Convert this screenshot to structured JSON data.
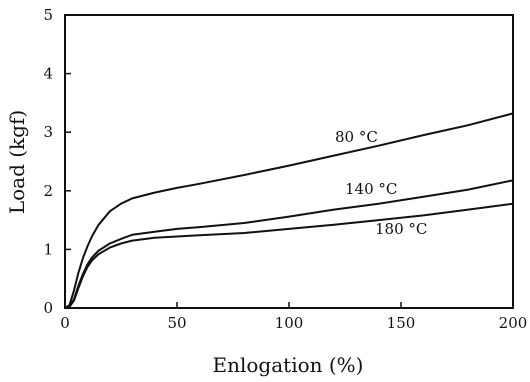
{
  "chart_data": {
    "type": "line",
    "title": "",
    "xlabel": "Enlogation (%)",
    "ylabel": "Load (kgf)",
    "xlim": [
      0,
      200
    ],
    "ylim": [
      0,
      5
    ],
    "xticks": [
      0,
      50,
      100,
      150,
      200
    ],
    "yticks": [
      0,
      1,
      2,
      3,
      4,
      5
    ],
    "xtick_labels": [
      "0",
      "50",
      "100",
      "150",
      "200"
    ],
    "ytick_labels": [
      "0",
      "1",
      "2",
      "3",
      "4",
      "5"
    ],
    "grid": false,
    "legend": "none (series labeled directly on curves)",
    "series": [
      {
        "name": "80 °C",
        "color": "#111111",
        "x": [
          0,
          2,
          4,
          6,
          8,
          10,
          12,
          15,
          20,
          25,
          30,
          40,
          50,
          60,
          80,
          100,
          120,
          140,
          160,
          180,
          200
        ],
        "y": [
          0,
          0.05,
          0.3,
          0.6,
          0.85,
          1.05,
          1.22,
          1.42,
          1.65,
          1.78,
          1.87,
          1.97,
          2.05,
          2.12,
          2.27,
          2.43,
          2.6,
          2.77,
          2.95,
          3.12,
          3.32
        ]
      },
      {
        "name": "140 °C",
        "color": "#111111",
        "x": [
          0,
          2,
          4,
          6,
          8,
          10,
          12,
          15,
          20,
          25,
          30,
          40,
          50,
          60,
          80,
          100,
          120,
          140,
          160,
          180,
          200
        ],
        "y": [
          0,
          0.02,
          0.15,
          0.38,
          0.58,
          0.74,
          0.86,
          0.98,
          1.1,
          1.18,
          1.25,
          1.3,
          1.35,
          1.38,
          1.45,
          1.56,
          1.68,
          1.78,
          1.9,
          2.02,
          2.18
        ]
      },
      {
        "name": "180 °C",
        "color": "#111111",
        "x": [
          0,
          2,
          4,
          6,
          8,
          10,
          12,
          15,
          20,
          25,
          30,
          40,
          50,
          60,
          80,
          100,
          120,
          140,
          160,
          180,
          200
        ],
        "y": [
          0,
          0.02,
          0.13,
          0.34,
          0.54,
          0.7,
          0.81,
          0.92,
          1.03,
          1.1,
          1.15,
          1.2,
          1.22,
          1.24,
          1.28,
          1.35,
          1.42,
          1.5,
          1.58,
          1.68,
          1.78
        ]
      }
    ]
  }
}
